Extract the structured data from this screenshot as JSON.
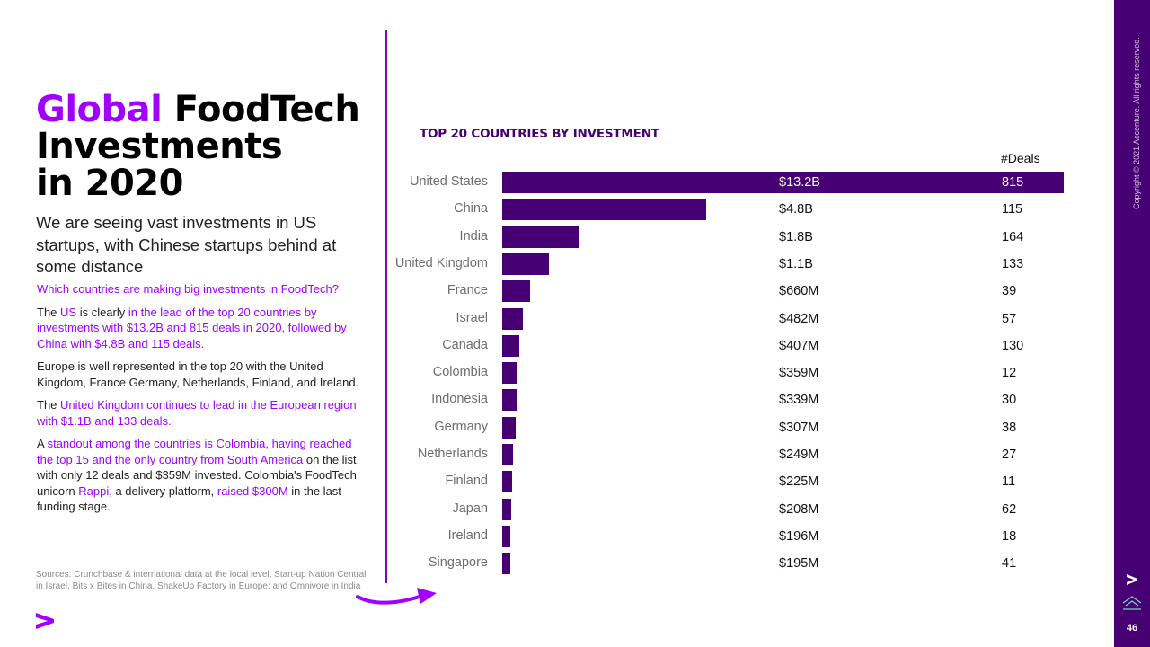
{
  "title": {
    "accent": "Global",
    "rest_line1": " FoodTech",
    "line2": "Investments",
    "line3": "in 2020"
  },
  "lede": "We are seeing vast investments in US startups, with Chinese startups behind at some distance",
  "question": "Which countries are making big investments in FoodTech?",
  "p1": {
    "a": "The ",
    "b": "US",
    "c": " is clearly ",
    "d": "in the lead of the top 20 countries by investments with $13.2B and 815 deals in 2020, followed by China with $4.8B and 115 deals."
  },
  "p2": "Europe is well represented in the top 20 with the United Kingdom, France Germany, Netherlands, Finland, and Ireland.",
  "p3": {
    "a": "The ",
    "b": "United Kingdom continues to lead in the European region with $1.1B and 133 deals."
  },
  "p4": {
    "a": "A ",
    "b": "standout among the countries is Colombia, having reached the top 15 and the only country from South America",
    "c": " on the list with only 12 deals and $359M invested. Colombia's FoodTech unicorn ",
    "d": "Rappi",
    "e": ", a delivery platform, ",
    "f": "raised $300M",
    "g": " in the last funding stage."
  },
  "sources": "Sources: Crunchbase & international data at the local level; Start-up Nation Central in Israel, Bits x Bites in China, ShakeUp Factory in Europe; and Omnivore in India",
  "sidebar": {
    "copyright": "Copyright © 2021 Accenture. All rights reserved.",
    "page_number": "46"
  },
  "colors": {
    "accent": "#a100ff",
    "bar": "#460073",
    "sidebar": "#460073"
  },
  "chart_data": {
    "type": "bar",
    "orientation": "horizontal",
    "title": "TOP 20 COUNTRIES BY INVESTMENT",
    "deals_header": "#Deals",
    "unit": "USD",
    "categories": [
      "United States",
      "China",
      "India",
      "United Kingdom",
      "France",
      "Israel",
      "Canada",
      "Colombia",
      "Indonesia",
      "Germany",
      "Netherlands",
      "Finland",
      "Japan",
      "Ireland",
      "Singapore"
    ],
    "values": [
      13.2,
      4.8,
      1.8,
      1.1,
      0.66,
      0.482,
      0.407,
      0.359,
      0.339,
      0.307,
      0.249,
      0.225,
      0.208,
      0.196,
      0.195
    ],
    "value_labels": [
      "$13.2B",
      "$4.8B",
      "$1.8B",
      "$1.1B",
      "$660M",
      "$482M",
      "$407M",
      "$359M",
      "$339M",
      "$307M",
      "$249M",
      "$225M",
      "$208M",
      "$196M",
      "$195M"
    ],
    "deals": [
      "815",
      "115",
      "164",
      "133",
      "39",
      "57",
      "130",
      "12",
      "30",
      "38",
      "27",
      "11",
      "62",
      "18",
      "41"
    ],
    "xlim": [
      0,
      13.2
    ]
  }
}
